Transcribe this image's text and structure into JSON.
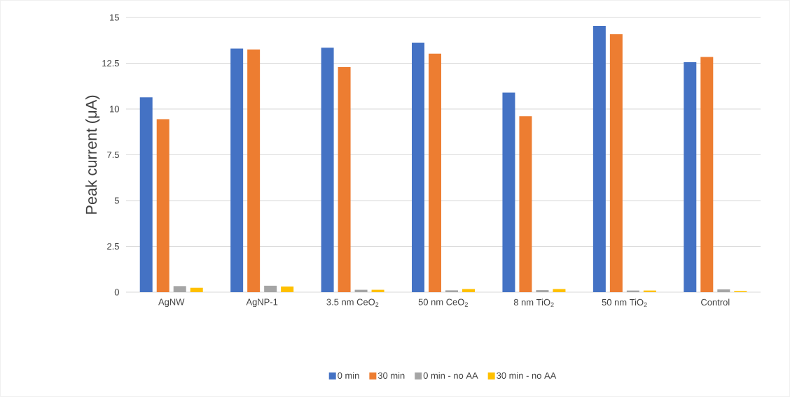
{
  "chart_data": {
    "type": "bar",
    "ylabel": "Peak current (μA)",
    "categories": [
      "AgNW",
      "AgNP-1",
      "3.5 nm CeO$_{2}$",
      "50 nm CeO$_{2}$",
      "8 nm TiO$_{2}$",
      "50 nm TiO$_{2}$",
      "Control"
    ],
    "series": [
      {
        "name": "0 min",
        "color": "#4472c4",
        "values": [
          10.64,
          13.3,
          13.35,
          13.63,
          10.9,
          14.54,
          12.56
        ]
      },
      {
        "name": "30 min",
        "color": "#ed7d31",
        "values": [
          9.45,
          13.25,
          12.29,
          13.02,
          9.61,
          14.08,
          12.84
        ]
      },
      {
        "name": "0 min - no AA",
        "color": "#a5a5a5",
        "values": [
          0.33,
          0.35,
          0.13,
          0.1,
          0.11,
          0.09,
          0.15
        ]
      },
      {
        "name": "30 min - no AA",
        "color": "#ffc000",
        "values": [
          0.24,
          0.31,
          0.13,
          0.17,
          0.17,
          0.09,
          0.06
        ]
      }
    ],
    "ylim": [
      0,
      15
    ],
    "yticks": [
      0,
      2.5,
      5,
      7.5,
      10,
      12.5,
      15
    ],
    "grid": "y",
    "legend": "bottom"
  }
}
